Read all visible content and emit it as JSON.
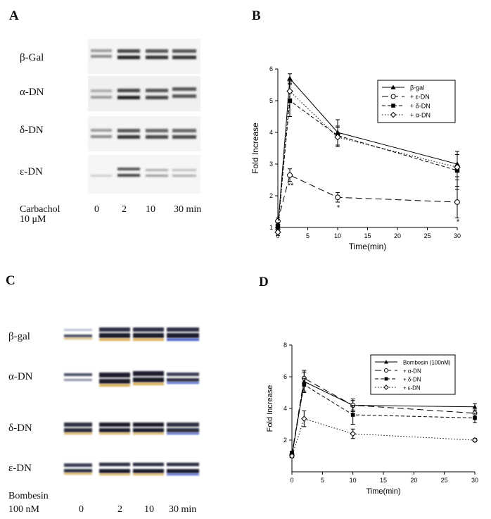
{
  "panels": {
    "A": {
      "letter": "A",
      "rows": [
        "β-Gal",
        "α-DN",
        "δ-DN",
        "ε-DN"
      ],
      "treatment_line1": "Carbachol",
      "treatment_line2": "10 μM",
      "lanes": [
        "0",
        "2",
        "10",
        "30 min"
      ]
    },
    "C": {
      "letter": "C",
      "rows": [
        "β-gal",
        "α-DN",
        "δ-DN",
        "ε-DN"
      ],
      "treatment_line1": "Bombesin",
      "treatment_line2": "100 nM",
      "lanes": [
        "0",
        "2",
        "10",
        "30 min"
      ]
    },
    "B": {
      "letter": "B"
    },
    "D": {
      "letter": "D"
    }
  },
  "chart_data": [
    {
      "panel": "B",
      "type": "line",
      "xlabel": "Time(min)",
      "ylabel": "Fold Increase",
      "xlim": [
        0,
        30
      ],
      "ylim": [
        1,
        6
      ],
      "xticks": [
        "0",
        "5",
        "10",
        "15",
        "20",
        "25",
        "30"
      ],
      "yticks": [
        "1",
        "2",
        "3",
        "4",
        "5",
        "6"
      ],
      "x": [
        0,
        2,
        10,
        30
      ],
      "series": [
        {
          "name": "β-gal",
          "values": [
            1.0,
            5.7,
            4.0,
            3.0
          ],
          "err": [
            0.1,
            0.15,
            0.4,
            0.4
          ],
          "marker": "triangle-filled",
          "dash": "solid"
        },
        {
          "name": "+ ε-DN",
          "values": [
            1.2,
            2.65,
            1.95,
            1.8
          ],
          "err": [
            0.1,
            0.2,
            0.15,
            0.5
          ],
          "marker": "circle-open",
          "dash": "long-dash"
        },
        {
          "name": "+ δ-DN",
          "values": [
            1.05,
            5.0,
            3.9,
            2.8
          ],
          "err": [
            0.1,
            0.5,
            0.3,
            0.6
          ],
          "marker": "square-filled",
          "dash": "dash"
        },
        {
          "name": "+ α-DN",
          "values": [
            0.85,
            5.3,
            3.85,
            2.9
          ],
          "err": [
            0.1,
            0.3,
            0.3,
            0.4
          ],
          "marker": "diamond-open",
          "dash": "dot"
        }
      ],
      "annotations": [
        {
          "text": "**",
          "x": 2,
          "y": 2.25
        },
        {
          "text": "*",
          "x": 10,
          "y": 1.55
        },
        {
          "text": "*",
          "x": 30,
          "y": 1.1
        }
      ]
    },
    {
      "panel": "D",
      "type": "line",
      "xlabel": "Time(min)",
      "ylabel": "Fold Increase",
      "xlim": [
        0,
        30
      ],
      "ylim": [
        0,
        8
      ],
      "xticks": [
        "0",
        "5",
        "10",
        "15",
        "20",
        "25",
        "30"
      ],
      "yticks": [
        "2",
        "4",
        "6",
        "8"
      ],
      "x": [
        0,
        2,
        10,
        30
      ],
      "series": [
        {
          "name": "Bombesin (100nM)",
          "values": [
            1.0,
            5.7,
            4.2,
            4.1
          ],
          "err": [
            0.1,
            0.7,
            0.4,
            0.2
          ],
          "marker": "triangle-filled",
          "dash": "solid"
        },
        {
          "name": "+ α-DN",
          "values": [
            1.1,
            5.9,
            4.2,
            3.7
          ],
          "err": [
            0.1,
            0.4,
            0.3,
            0.3
          ],
          "marker": "circle-open",
          "dash": "long-dash"
        },
        {
          "name": "+ δ-DN",
          "values": [
            1.2,
            5.5,
            3.6,
            3.4
          ],
          "err": [
            0.1,
            0.4,
            0.6,
            0.3
          ],
          "marker": "square-filled",
          "dash": "dash"
        },
        {
          "name": "+ ε-DN",
          "values": [
            1.0,
            3.35,
            2.4,
            2.0
          ],
          "err": [
            0.1,
            0.5,
            0.3,
            0.1
          ],
          "marker": "diamond-open",
          "dash": "dot"
        }
      ]
    }
  ]
}
